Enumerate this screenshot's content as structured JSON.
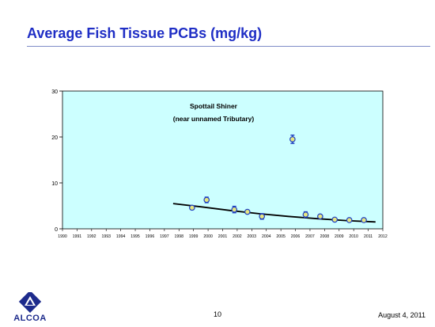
{
  "slide": {
    "title": "Average Fish Tissue PCBs (mg/kg)",
    "page_number": "10",
    "date": "August 4, 2011",
    "logo_text": "ALCOA"
  },
  "colors": {
    "title": "#1f2ec5",
    "plot_background": "#ccffff",
    "marker_outer": "#1f3fc0",
    "marker_fill": "#e6e680",
    "trend_line": "#000000",
    "error_bar": "#1f3fc0"
  },
  "chart_data": {
    "type": "scatter",
    "title": "Spottail Shiner",
    "subtitle": "(near unnamed Tributary)",
    "xlabel": "",
    "ylabel": "",
    "xlim": [
      1990,
      2012
    ],
    "ylim": [
      0,
      30
    ],
    "x_ticks": [
      "1990",
      "1991",
      "1992",
      "1993",
      "1994",
      "1995",
      "1996",
      "1997",
      "1998",
      "1999",
      "2000",
      "2001",
      "2002",
      "2003",
      "2004",
      "2005",
      "2006",
      "2007",
      "2008",
      "2009",
      "2010",
      "2011",
      "2012"
    ],
    "y_ticks": [
      "0",
      "10",
      "20",
      "30"
    ],
    "grid": false,
    "points": [
      {
        "x": 1998.9,
        "y": 4.6,
        "err": 0.4
      },
      {
        "x": 1999.9,
        "y": 6.3,
        "err": 0.6
      },
      {
        "x": 2001.8,
        "y": 4.2,
        "err": 0.7
      },
      {
        "x": 2002.7,
        "y": 3.7,
        "err": 0.3
      },
      {
        "x": 2003.7,
        "y": 2.7,
        "err": 0.6
      },
      {
        "x": 2005.8,
        "y": 19.5,
        "err": 0.9
      },
      {
        "x": 2006.7,
        "y": 3.1,
        "err": 0.6
      },
      {
        "x": 2007.7,
        "y": 2.7,
        "err": 0.2
      },
      {
        "x": 2008.7,
        "y": 2.0,
        "err": 0.2
      },
      {
        "x": 2009.7,
        "y": 1.9,
        "err": 0.2
      },
      {
        "x": 2010.7,
        "y": 1.9,
        "err": 0.2
      }
    ],
    "trend_line": [
      {
        "x": 1997.6,
        "y": 5.5
      },
      {
        "x": 1999.5,
        "y": 4.8
      },
      {
        "x": 2001.5,
        "y": 4.0
      },
      {
        "x": 2003.5,
        "y": 3.3
      },
      {
        "x": 2005.5,
        "y": 2.7
      },
      {
        "x": 2007.5,
        "y": 2.2
      },
      {
        "x": 2009.5,
        "y": 1.8
      },
      {
        "x": 2011.5,
        "y": 1.5
      }
    ]
  }
}
